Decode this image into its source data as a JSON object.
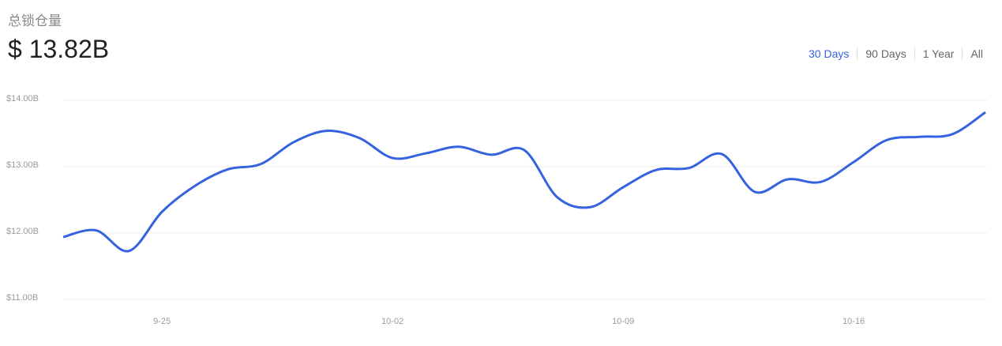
{
  "chart_data": {
    "type": "line",
    "title": "总锁仓量",
    "headline": "$ 13.82B",
    "ranges": [
      "30 Days",
      "90 Days",
      "1 Year",
      "All"
    ],
    "active_range": 0,
    "categories": [
      null,
      null,
      null,
      "9-25",
      null,
      null,
      null,
      null,
      null,
      null,
      "10-02",
      null,
      null,
      null,
      null,
      null,
      null,
      "10-09",
      null,
      null,
      null,
      null,
      null,
      null,
      "10-16",
      null,
      null,
      null,
      null
    ],
    "series": [
      {
        "color": "#3563e0",
        "values": [
          11.94,
          12.04,
          11.73,
          12.32,
          12.71,
          12.96,
          13.04,
          13.37,
          13.54,
          13.43,
          13.13,
          13.2,
          13.3,
          13.18,
          13.25,
          12.54,
          12.39,
          12.69,
          12.95,
          12.98,
          13.19,
          12.62,
          12.81,
          12.77,
          13.07,
          13.4,
          13.45,
          13.49,
          13.82
        ]
      }
    ],
    "ylim": [
      11,
      14
    ],
    "yticks": [
      {
        "value": 11,
        "label": "$11.00B"
      },
      {
        "value": 12,
        "label": "$12.00B"
      },
      {
        "value": 13,
        "label": "$13.00B"
      },
      {
        "value": 14,
        "label": "$14.00B"
      }
    ],
    "grid": true
  }
}
